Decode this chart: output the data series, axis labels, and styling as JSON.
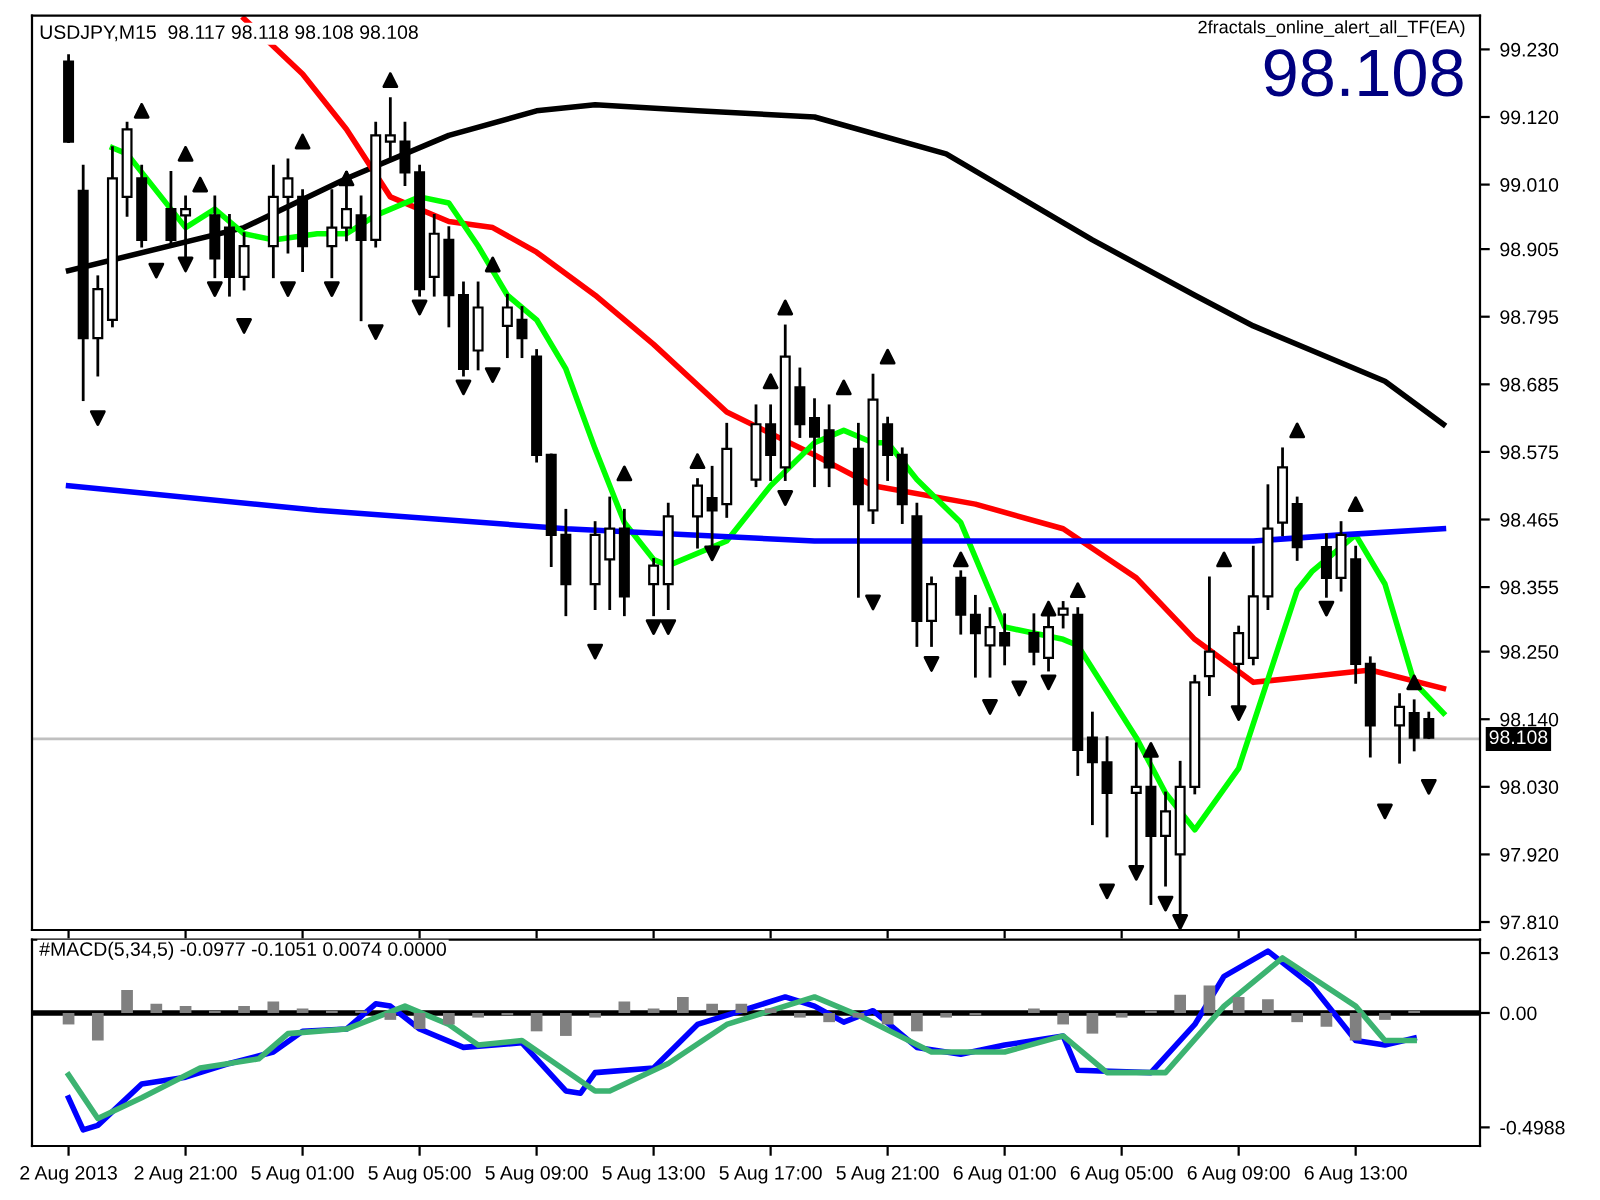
{
  "chart_data": [
    {
      "type": "candlestick",
      "title": "USDJPY,M15  98.117 98.118 98.108 98.108",
      "annotations": [
        "2fractals_online_alert_all_TF(EA)",
        "98.108"
      ],
      "ohlc": [
        [
          99.21,
          99.22,
          99.08,
          99.08
        ],
        [
          99.0,
          99.04,
          98.66,
          98.76
        ],
        [
          98.76,
          98.86,
          98.7,
          98.84
        ],
        [
          98.79,
          99.07,
          98.78,
          99.02
        ],
        [
          98.99,
          99.11,
          98.96,
          99.1
        ],
        [
          99.02,
          99.04,
          98.91,
          98.92
        ],
        null,
        [
          98.97,
          99.03,
          98.91,
          98.92
        ],
        [
          98.96,
          98.99,
          98.89,
          98.97
        ],
        null,
        [
          98.96,
          98.99,
          98.86,
          98.89
        ],
        [
          98.94,
          98.96,
          98.83,
          98.86
        ],
        [
          98.86,
          98.93,
          98.84,
          98.91
        ],
        null,
        [
          98.91,
          99.04,
          98.86,
          98.99
        ],
        [
          98.99,
          99.05,
          98.9,
          99.02
        ],
        [
          98.99,
          99.0,
          98.87,
          98.91
        ],
        null,
        [
          98.91,
          99.0,
          98.86,
          98.94
        ],
        [
          98.94,
          99.03,
          98.92,
          98.97
        ],
        [
          98.96,
          98.99,
          98.79,
          98.92
        ],
        [
          98.92,
          99.11,
          98.91,
          99.09
        ],
        [
          99.08,
          99.15,
          99.05,
          99.09
        ],
        [
          99.08,
          99.11,
          99.01,
          99.03
        ],
        [
          99.03,
          99.04,
          98.83,
          98.84
        ],
        [
          98.86,
          98.96,
          98.83,
          98.93
        ],
        [
          98.92,
          98.94,
          98.78,
          98.83
        ],
        [
          98.83,
          98.85,
          98.7,
          98.71
        ],
        [
          98.74,
          98.85,
          98.71,
          98.81
        ],
        null,
        [
          98.78,
          98.83,
          98.73,
          98.81
        ],
        [
          98.79,
          98.81,
          98.73,
          98.76
        ],
        [
          98.73,
          98.74,
          98.56,
          98.57
        ],
        [
          98.57,
          98.57,
          98.39,
          98.44
        ],
        [
          98.44,
          98.48,
          98.31,
          98.36
        ],
        null,
        [
          98.36,
          98.46,
          98.32,
          98.44
        ],
        [
          98.4,
          98.5,
          98.32,
          98.45
        ],
        [
          98.45,
          98.48,
          98.31,
          98.34
        ],
        null,
        [
          98.36,
          98.4,
          98.31,
          98.39
        ],
        [
          98.36,
          98.49,
          98.32,
          98.47
        ],
        null,
        [
          98.47,
          98.53,
          98.42,
          98.52
        ],
        [
          98.5,
          98.55,
          98.42,
          98.48
        ],
        [
          98.49,
          98.62,
          98.47,
          98.58
        ],
        null,
        [
          98.53,
          98.65,
          98.52,
          98.62
        ],
        [
          98.62,
          98.65,
          98.53,
          98.57
        ],
        [
          98.55,
          98.78,
          98.53,
          98.73
        ],
        [
          98.68,
          98.71,
          98.6,
          98.62
        ],
        [
          98.63,
          98.66,
          98.52,
          98.6
        ],
        [
          98.61,
          98.65,
          98.52,
          98.55
        ],
        null,
        [
          98.58,
          98.62,
          98.34,
          98.49
        ],
        [
          98.48,
          98.7,
          98.46,
          98.66
        ],
        [
          98.62,
          98.63,
          98.53,
          98.57
        ],
        [
          98.57,
          98.58,
          98.46,
          98.49
        ],
        [
          98.47,
          98.49,
          98.26,
          98.3
        ],
        [
          98.3,
          98.37,
          98.26,
          98.36
        ],
        null,
        [
          98.37,
          98.38,
          98.28,
          98.31
        ],
        [
          98.31,
          98.34,
          98.21,
          98.28
        ],
        [
          98.26,
          98.32,
          98.21,
          98.29
        ],
        [
          98.28,
          98.31,
          98.23,
          98.26
        ],
        null,
        [
          98.28,
          98.31,
          98.23,
          98.25
        ],
        [
          98.24,
          98.32,
          98.22,
          98.29
        ],
        [
          98.31,
          98.33,
          98.29,
          98.32
        ],
        [
          98.31,
          98.32,
          98.05,
          98.09
        ],
        [
          98.11,
          98.15,
          97.97,
          98.07
        ],
        [
          98.07,
          98.11,
          97.95,
          98.02
        ],
        null,
        [
          98.02,
          98.1,
          97.89,
          98.03
        ],
        [
          98.03,
          98.08,
          97.84,
          97.95
        ],
        [
          97.95,
          98.02,
          97.87,
          97.99
        ],
        [
          97.92,
          98.07,
          97.82,
          98.03
        ],
        [
          98.03,
          98.21,
          98.02,
          98.2
        ],
        [
          98.21,
          98.37,
          98.18,
          98.25
        ],
        null,
        [
          98.23,
          98.29,
          98.16,
          98.28
        ],
        [
          98.24,
          98.42,
          98.23,
          98.34
        ],
        [
          98.34,
          98.52,
          98.32,
          98.45
        ],
        [
          98.46,
          98.58,
          98.44,
          98.55
        ],
        [
          98.49,
          98.5,
          98.4,
          98.42
        ],
        null,
        [
          98.42,
          98.44,
          98.34,
          98.37
        ],
        [
          98.37,
          98.46,
          98.35,
          98.44
        ],
        [
          98.4,
          98.42,
          98.2,
          98.23
        ],
        [
          98.23,
          98.24,
          98.08,
          98.13
        ],
        null,
        [
          98.13,
          98.18,
          98.07,
          98.16
        ],
        [
          98.15,
          98.17,
          98.09,
          98.11
        ],
        [
          98.14,
          98.15,
          98.11,
          98.11
        ],
        null
      ],
      "series": [
        {
          "type": "line",
          "color": "#000000",
          "values": [
            98.87,
            null,
            null,
            null,
            null,
            null,
            null,
            null,
            null,
            null,
            null,
            null,
            98.94,
            null,
            null,
            null,
            null,
            null,
            null,
            99.02,
            null,
            null,
            null,
            null,
            null,
            null,
            99.09,
            null,
            null,
            null,
            null,
            null,
            99.13,
            null,
            null,
            null,
            99.14,
            null,
            null,
            null,
            null,
            null,
            null,
            99.13,
            null,
            null,
            null,
            null,
            null,
            null,
            null,
            99.12,
            null,
            null,
            null,
            null,
            null,
            null,
            null,
            null,
            99.06,
            null,
            null,
            null,
            null,
            null,
            null,
            null,
            null,
            null,
            98.92,
            null,
            null,
            null,
            null,
            null,
            null,
            98.83,
            null,
            null,
            null,
            98.78,
            null,
            null,
            null,
            98.74,
            null,
            null,
            null,
            null,
            98.69,
            null,
            null,
            null,
            98.62
          ]
        },
        {
          "type": "line",
          "color": "#ff0000",
          "values": [
            null,
            null,
            null,
            null,
            null,
            null,
            null,
            null,
            null,
            null,
            null,
            null,
            99.28,
            null,
            null,
            null,
            99.19,
            null,
            null,
            99.1,
            null,
            null,
            98.99,
            null,
            null,
            null,
            98.95,
            null,
            null,
            98.94,
            null,
            null,
            98.9,
            null,
            null,
            null,
            98.83,
            null,
            null,
            null,
            98.75,
            null,
            null,
            null,
            null,
            98.64,
            null,
            null,
            null,
            null,
            null,
            98.57,
            null,
            null,
            null,
            98.52,
            null,
            null,
            null,
            null,
            null,
            null,
            98.49,
            null,
            null,
            null,
            null,
            null,
            98.45,
            null,
            null,
            null,
            null,
            98.37,
            null,
            null,
            null,
            98.27,
            null,
            null,
            null,
            98.2,
            null,
            null,
            null,
            98.21,
            null,
            null,
            null,
            98.22,
            null,
            null,
            null,
            null,
            98.19
          ]
        },
        {
          "type": "line",
          "color": "#00ff00",
          "values": [
            null,
            null,
            null,
            99.07,
            99.06,
            null,
            null,
            null,
            98.94,
            null,
            98.97,
            null,
            98.93,
            null,
            98.92,
            null,
            null,
            98.93,
            null,
            98.93,
            null,
            98.96,
            null,
            null,
            98.99,
            null,
            98.98,
            null,
            98.91,
            null,
            98.83,
            null,
            98.79,
            null,
            98.71,
            null,
            98.58,
            null,
            98.46,
            null,
            98.4,
            98.39,
            null,
            null,
            null,
            98.43,
            null,
            null,
            98.52,
            null,
            null,
            98.59,
            null,
            98.61,
            null,
            98.59,
            98.59,
            null,
            98.53,
            null,
            null,
            98.46,
            null,
            null,
            98.29,
            null,
            null,
            null,
            98.27,
            98.26,
            null,
            null,
            null,
            98.11,
            null,
            98.02,
            null,
            97.96,
            null,
            null,
            98.06,
            null,
            null,
            null,
            98.35,
            98.38,
            null,
            null,
            98.44,
            null,
            98.36,
            null,
            98.2,
            null,
            98.15
          ]
        },
        {
          "type": "line",
          "color": "#0000ff",
          "values": [
            98.52,
            null,
            null,
            null,
            null,
            null,
            null,
            null,
            null,
            null,
            null,
            null,
            null,
            null,
            null,
            null,
            null,
            98.48,
            null,
            null,
            null,
            null,
            null,
            null,
            null,
            null,
            null,
            null,
            null,
            null,
            null,
            null,
            null,
            null,
            98.45,
            null,
            null,
            null,
            null,
            null,
            null,
            null,
            null,
            null,
            null,
            null,
            null,
            null,
            null,
            null,
            null,
            98.43,
            null,
            null,
            null,
            null,
            null,
            null,
            null,
            null,
            null,
            null,
            null,
            null,
            null,
            null,
            null,
            null,
            null,
            null,
            null,
            null,
            null,
            98.43,
            null,
            null,
            null,
            null,
            null,
            null,
            null,
            98.43,
            null,
            null,
            null,
            null,
            null,
            98.44,
            null,
            null,
            null,
            null,
            null,
            null,
            98.45
          ]
        },
        {
          "type": "scatter",
          "marker": "triangle",
          "color": "#000000",
          "values": [
            null,
            null,
            null,
            null,
            null,
            99.13,
            null,
            null,
            99.06,
            99.01,
            null,
            null,
            null,
            null,
            null,
            null,
            99.08,
            null,
            null,
            99.02,
            null,
            null,
            99.18,
            null,
            null,
            null,
            null,
            null,
            null,
            98.88,
            null,
            null,
            null,
            null,
            null,
            null,
            null,
            null,
            98.54,
            null,
            null,
            null,
            null,
            98.56,
            null,
            null,
            null,
            null,
            98.69,
            98.81,
            null,
            null,
            null,
            98.68,
            null,
            null,
            98.73,
            null,
            null,
            null,
            null,
            98.4,
            null,
            null,
            null,
            null,
            null,
            98.32,
            null,
            98.35,
            null,
            null,
            null,
            null,
            98.09,
            null,
            null,
            null,
            null,
            98.4,
            null,
            null,
            null,
            null,
            98.61,
            null,
            null,
            null,
            98.49,
            null,
            null,
            null,
            98.2,
            null,
            null
          ]
        },
        {
          "type": "scatter",
          "marker": "triangle_down",
          "color": "#000000",
          "values": [
            null,
            null,
            98.63,
            null,
            null,
            null,
            98.87,
            null,
            98.88,
            null,
            98.84,
            null,
            98.78,
            null,
            null,
            98.84,
            null,
            null,
            98.84,
            null,
            null,
            98.77,
            null,
            null,
            98.81,
            null,
            null,
            98.68,
            null,
            98.7,
            null,
            null,
            null,
            null,
            null,
            null,
            98.25,
            null,
            null,
            null,
            98.29,
            98.29,
            null,
            null,
            98.41,
            null,
            null,
            null,
            null,
            98.5,
            null,
            null,
            null,
            null,
            null,
            98.33,
            null,
            null,
            null,
            98.23,
            null,
            null,
            null,
            98.16,
            null,
            98.19,
            null,
            98.2,
            null,
            null,
            null,
            97.86,
            null,
            97.89,
            null,
            97.84,
            97.81,
            null,
            null,
            null,
            98.15,
            null,
            null,
            null,
            null,
            null,
            98.32,
            null,
            null,
            null,
            97.99,
            null,
            null,
            98.03,
            null
          ]
        }
      ],
      "ref_lines": [
        {
          "axis": "y",
          "value": 98.108,
          "label": "98.108",
          "color": "#c0c0c0"
        }
      ],
      "ylim": [
        97.797,
        99.285
      ],
      "yticks": [
        {
          "value": 99.23,
          "label": "99.230"
        },
        {
          "value": 99.12,
          "label": "99.120"
        },
        {
          "value": 99.01,
          "label": "99.010"
        },
        98.905,
        98.795,
        98.685,
        98.575,
        98.465,
        98.355,
        {
          "value": 98.25,
          "label": "98.250"
        },
        {
          "value": 98.14,
          "label": "98.140"
        },
        {
          "value": 98.03,
          "label": "98.030"
        },
        {
          "value": 97.92,
          "label": "97.920"
        },
        {
          "value": 97.81,
          "label": "97.810"
        }
      ],
      "tick_labels": "y",
      "grid": false,
      "legend": false
    },
    {
      "type": "bar",
      "title": "#MACD(5,34,5) -0.0977 -0.1051 0.0074 0.0000",
      "categories": [
        "2 Aug 2013",
        null,
        null,
        null,
        null,
        null,
        null,
        null,
        "2 Aug 21:00",
        null,
        null,
        null,
        null,
        null,
        null,
        null,
        "5 Aug 01:00",
        null,
        null,
        null,
        null,
        null,
        null,
        null,
        "5 Aug 05:00",
        null,
        null,
        null,
        null,
        null,
        null,
        null,
        "5 Aug 09:00",
        null,
        null,
        null,
        null,
        null,
        null,
        null,
        "5 Aug 13:00",
        null,
        null,
        null,
        null,
        null,
        null,
        null,
        "5 Aug 17:00",
        null,
        null,
        null,
        null,
        null,
        null,
        null,
        "5 Aug 21:00",
        null,
        null,
        null,
        null,
        null,
        null,
        null,
        "6 Aug 01:00",
        null,
        null,
        null,
        null,
        null,
        null,
        null,
        "6 Aug 05:00",
        null,
        null,
        null,
        null,
        null,
        null,
        null,
        "6 Aug 09:00",
        null,
        null,
        null,
        null,
        null,
        null,
        null,
        "6 Aug 13:00",
        null,
        null,
        null,
        null,
        null,
        null
      ],
      "series": [
        {
          "type": "bar",
          "color": "#808080",
          "values": [
            -0.05,
            null,
            -0.12,
            null,
            0.1,
            null,
            0.04,
            null,
            0.03,
            null,
            0.01,
            null,
            0.03,
            null,
            0.05,
            null,
            0.02,
            null,
            0.01,
            null,
            0.01,
            null,
            -0.03,
            null,
            -0.07,
            null,
            -0.05,
            null,
            -0.02,
            null,
            -0.01,
            null,
            -0.08,
            null,
            -0.1,
            null,
            -0.02,
            null,
            0.05,
            null,
            0.02,
            null,
            0.07,
            null,
            0.04,
            null,
            0.04,
            null,
            0.02,
            null,
            -0.02,
            null,
            -0.04,
            null,
            -0.02,
            null,
            -0.05,
            null,
            -0.08,
            null,
            -0.02,
            null,
            -0.01,
            null,
            0.0,
            null,
            0.02,
            null,
            -0.05,
            null,
            -0.09,
            null,
            -0.02,
            null,
            0.01,
            null,
            0.08,
            null,
            0.12,
            null,
            0.07,
            null,
            0.06,
            null,
            -0.04,
            null,
            -0.06,
            null,
            -0.12,
            null,
            -0.03,
            null,
            0.01,
            null,
            null
          ]
        },
        {
          "type": "line",
          "color": "#0000ff",
          "values": [
            -0.37,
            -0.51,
            -0.49,
            null,
            null,
            -0.31,
            null,
            null,
            -0.28,
            null,
            null,
            -0.22,
            null,
            null,
            -0.17,
            null,
            -0.08,
            null,
            null,
            -0.07,
            null,
            0.04,
            0.03,
            null,
            -0.07,
            null,
            null,
            -0.15,
            null,
            null,
            null,
            -0.13,
            null,
            null,
            -0.34,
            -0.35,
            -0.26,
            null,
            null,
            null,
            -0.24,
            null,
            null,
            -0.05,
            null,
            null,
            null,
            null,
            null,
            0.07,
            null,
            0.03,
            null,
            -0.04,
            null,
            0.01,
            null,
            null,
            -0.15,
            null,
            null,
            -0.18,
            null,
            null,
            -0.14,
            null,
            null,
            null,
            -0.1,
            -0.25,
            null,
            null,
            null,
            null,
            -0.26,
            null,
            null,
            -0.05,
            null,
            0.16,
            null,
            null,
            0.27,
            null,
            null,
            0.12,
            null,
            null,
            -0.12,
            null,
            -0.14,
            null,
            -0.11,
            null,
            null
          ]
        },
        {
          "type": "line",
          "color": "#3cb371",
          "values": [
            -0.27,
            null,
            -0.46,
            null,
            null,
            -0.37,
            null,
            null,
            null,
            -0.24,
            null,
            null,
            null,
            -0.2,
            null,
            -0.09,
            null,
            null,
            null,
            -0.07,
            null,
            null,
            null,
            0.03,
            null,
            null,
            -0.05,
            null,
            -0.14,
            null,
            null,
            -0.12,
            null,
            null,
            null,
            null,
            -0.34,
            -0.34,
            null,
            null,
            null,
            -0.22,
            null,
            null,
            null,
            -0.05,
            null,
            null,
            null,
            null,
            null,
            0.07,
            null,
            null,
            -0.01,
            null,
            null,
            null,
            null,
            -0.17,
            null,
            null,
            null,
            null,
            -0.17,
            null,
            null,
            null,
            -0.1,
            null,
            null,
            -0.26,
            null,
            null,
            null,
            -0.26,
            null,
            null,
            null,
            0.03,
            null,
            null,
            null,
            0.24,
            null,
            null,
            null,
            null,
            0.03,
            null,
            -0.12,
            null,
            -0.12,
            null,
            null
          ]
        }
      ],
      "ref_lines": [
        {
          "axis": "y",
          "value": 0,
          "color": "#000000"
        }
      ],
      "ylim": [
        -0.58,
        0.32
      ],
      "yticks": [
        0.2613,
        {
          "value": 0,
          "label": "0.00"
        },
        -0.4988
      ],
      "grid": false,
      "legend": false
    }
  ]
}
